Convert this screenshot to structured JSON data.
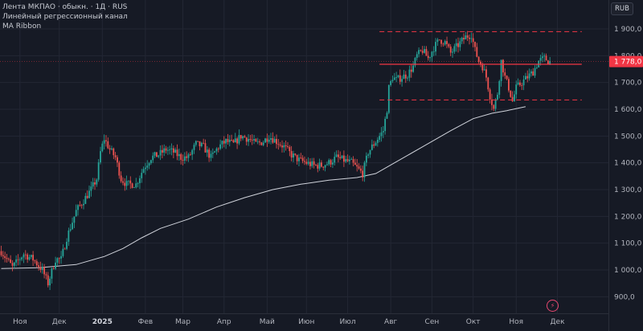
{
  "legend": {
    "symbol_line": "Лента МКПАО · обыкн. · 1Д · RUS",
    "indicator_1": "Линейный регрессионный канал",
    "indicator_2": "MA Ribbon"
  },
  "currency_button": "RUB",
  "colors": {
    "background": "#161a25",
    "grid": "#232734",
    "up_candle": "#26a69a",
    "down_candle": "#ef5350",
    "regression_line": "#f23645",
    "ma_line": "#d1d4dc",
    "last_price_bg": "#f23645"
  },
  "icons": {
    "lightning": "lightning-icon"
  },
  "chart_data": {
    "type": "candlestick",
    "title": "",
    "price_axis": {
      "min": 880,
      "max": 1920,
      "ticks": [
        900,
        1000,
        1100,
        1200,
        1300,
        1400,
        1500,
        1600,
        1700,
        1800,
        1900
      ],
      "tick_labels": [
        "900,0",
        "1 000,0",
        "1 100,0",
        "1 200,0",
        "1 300,0",
        "1 400,0",
        "1 500,0",
        "1 600,0",
        "1 700,0",
        "1 800,0",
        "1 900,0"
      ],
      "position": "right"
    },
    "time_axis": {
      "labels": [
        {
          "text": "Ноя",
          "bold": false,
          "index": 10
        },
        {
          "text": "Дек",
          "bold": false,
          "index": 31
        },
        {
          "text": "2025",
          "bold": true,
          "index": 54
        },
        {
          "text": "Фев",
          "bold": false,
          "index": 77
        },
        {
          "text": "Мар",
          "bold": false,
          "index": 97
        },
        {
          "text": "Апр",
          "bold": false,
          "index": 119
        },
        {
          "text": "Май",
          "bold": false,
          "index": 142
        },
        {
          "text": "Июн",
          "bold": false,
          "index": 163
        },
        {
          "text": "Июл",
          "bold": false,
          "index": 185
        },
        {
          "text": "Авг",
          "bold": false,
          "index": 208
        },
        {
          "text": "Сен",
          "bold": false,
          "index": 230
        },
        {
          "text": "Окт",
          "bold": false,
          "index": 252
        },
        {
          "text": "Ноя",
          "bold": false,
          "index": 275
        },
        {
          "text": "Дек",
          "bold": false,
          "index": 297
        }
      ]
    },
    "last_price": 1778.0,
    "last_price_label": "1 778,0",
    "regression_channel": {
      "start_index": 202,
      "end_index": 310,
      "center": 1768,
      "upper": 1890,
      "lower": 1635
    },
    "ma_line": [
      [
        0,
        1005
      ],
      [
        20,
        1008
      ],
      [
        40,
        1020
      ],
      [
        55,
        1050
      ],
      [
        65,
        1080
      ],
      [
        75,
        1120
      ],
      [
        85,
        1155
      ],
      [
        100,
        1190
      ],
      [
        115,
        1235
      ],
      [
        130,
        1270
      ],
      [
        145,
        1300
      ],
      [
        160,
        1320
      ],
      [
        175,
        1335
      ],
      [
        190,
        1345
      ],
      [
        200,
        1360
      ],
      [
        210,
        1400
      ],
      [
        225,
        1460
      ],
      [
        240,
        1520
      ],
      [
        252,
        1565
      ],
      [
        262,
        1585
      ],
      [
        270,
        1595
      ],
      [
        280,
        1610
      ]
    ],
    "price_path": [
      [
        0,
        1070
      ],
      [
        6,
        1010
      ],
      [
        12,
        1060
      ],
      [
        17,
        1040
      ],
      [
        22,
        1000
      ],
      [
        25,
        950
      ],
      [
        29,
        1040
      ],
      [
        32,
        1040
      ],
      [
        35,
        1120
      ],
      [
        40,
        1220
      ],
      [
        44,
        1260
      ],
      [
        48,
        1300
      ],
      [
        51,
        1340
      ],
      [
        53,
        1440
      ],
      [
        55,
        1490
      ],
      [
        58,
        1450
      ],
      [
        61,
        1420
      ],
      [
        64,
        1340
      ],
      [
        67,
        1320
      ],
      [
        72,
        1320
      ],
      [
        76,
        1380
      ],
      [
        80,
        1420
      ],
      [
        84,
        1430
      ],
      [
        88,
        1450
      ],
      [
        92,
        1440
      ],
      [
        96,
        1420
      ],
      [
        100,
        1420
      ],
      [
        104,
        1470
      ],
      [
        108,
        1460
      ],
      [
        112,
        1420
      ],
      [
        116,
        1460
      ],
      [
        120,
        1480
      ],
      [
        124,
        1470
      ],
      [
        128,
        1500
      ],
      [
        132,
        1490
      ],
      [
        136,
        1470
      ],
      [
        140,
        1480
      ],
      [
        143,
        1500
      ],
      [
        147,
        1480
      ],
      [
        151,
        1460
      ],
      [
        155,
        1430
      ],
      [
        159,
        1410
      ],
      [
        163,
        1400
      ],
      [
        167,
        1390
      ],
      [
        171,
        1390
      ],
      [
        175,
        1400
      ],
      [
        179,
        1420
      ],
      [
        183,
        1410
      ],
      [
        187,
        1400
      ],
      [
        190,
        1380
      ],
      [
        193,
        1360
      ],
      [
        196,
        1440
      ],
      [
        199,
        1470
      ],
      [
        202,
        1500
      ],
      [
        204,
        1520
      ],
      [
        206,
        1600
      ],
      [
        207,
        1680
      ],
      [
        209,
        1720
      ],
      [
        211,
        1710
      ],
      [
        214,
        1720
      ],
      [
        217,
        1730
      ],
      [
        220,
        1760
      ],
      [
        222,
        1800
      ],
      [
        225,
        1820
      ],
      [
        228,
        1790
      ],
      [
        231,
        1830
      ],
      [
        234,
        1860
      ],
      [
        237,
        1850
      ],
      [
        240,
        1810
      ],
      [
        244,
        1840
      ],
      [
        248,
        1870
      ],
      [
        251,
        1880
      ],
      [
        253,
        1820
      ],
      [
        255,
        1780
      ],
      [
        257,
        1760
      ],
      [
        259,
        1720
      ],
      [
        261,
        1650
      ],
      [
        263,
        1600
      ],
      [
        265,
        1660
      ],
      [
        267,
        1780
      ],
      [
        269,
        1720
      ],
      [
        271,
        1680
      ],
      [
        273,
        1630
      ],
      [
        275,
        1680
      ],
      [
        278,
        1700
      ],
      [
        281,
        1720
      ],
      [
        284,
        1740
      ],
      [
        287,
        1780
      ],
      [
        290,
        1790
      ],
      [
        293,
        1778
      ]
    ],
    "candle_count": 294
  }
}
